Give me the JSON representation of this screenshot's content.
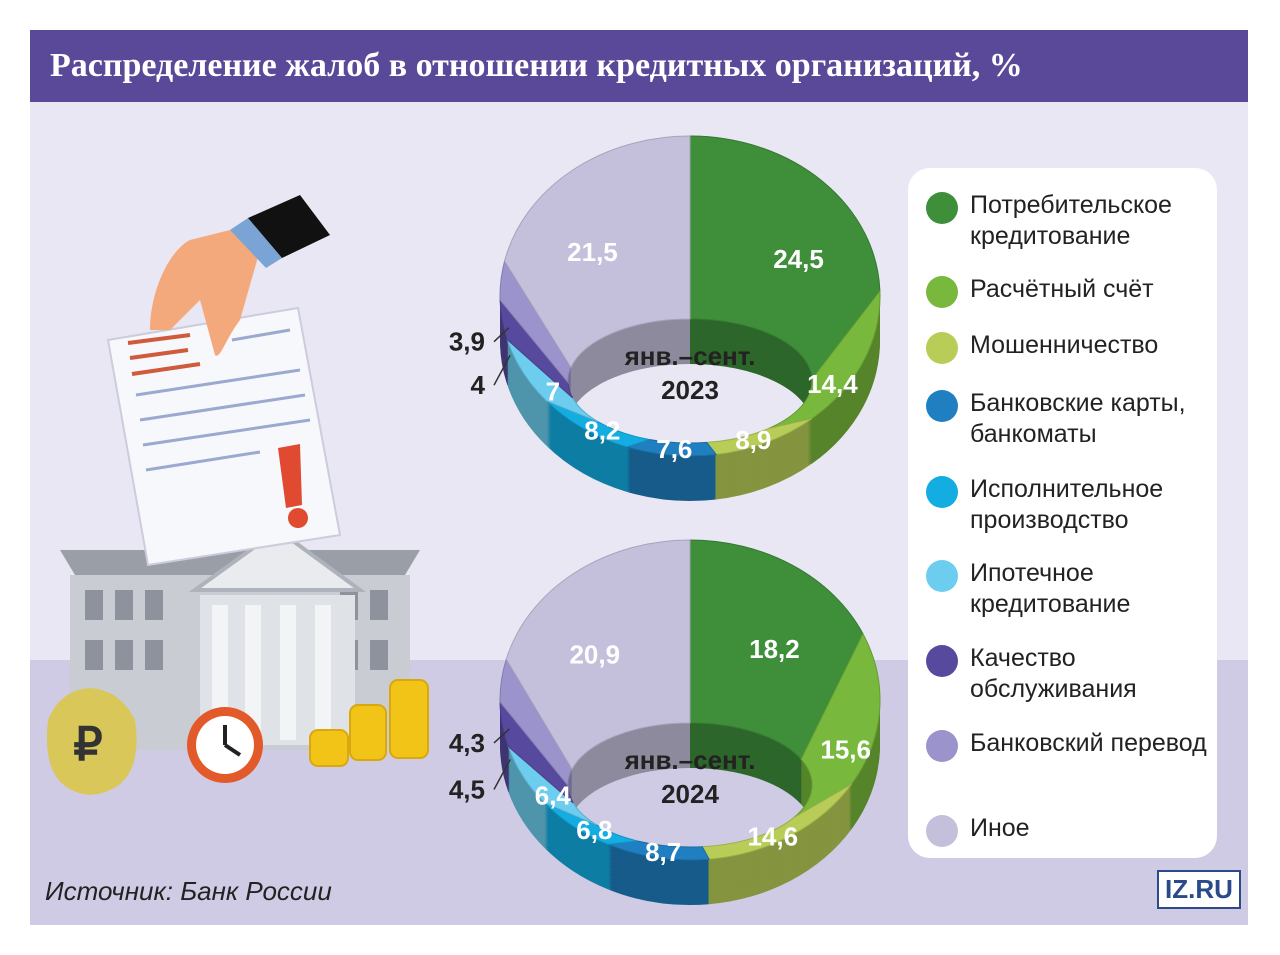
{
  "title": "Распределение жалоб в отношении кредитных организаций, %",
  "source": "Источник: Банк России",
  "logo": "IZ.RU",
  "chart_data": {
    "type": "pie",
    "donut": true,
    "categories": [
      "Потребительское кредитование",
      "Расчётный счёт",
      "Мошенничество",
      "Банковские карты, банкоматы",
      "Исполнительное производство",
      "Ипотечное кредитование",
      "Качество обслуживания",
      "Банковский перевод",
      "Иное"
    ],
    "colors": [
      "#3e8e3a",
      "#78b83c",
      "#b7cd58",
      "#1f7fc0",
      "#14ade2",
      "#6dcdee",
      "#574a9e",
      "#9b93cc",
      "#c4c0dc"
    ],
    "series": [
      {
        "name": "янв.–сент. 2023",
        "values": [
          24.5,
          14.4,
          8.9,
          7.6,
          8.2,
          7,
          4,
          3.9,
          21.5
        ],
        "value_labels": [
          "24,5",
          "14,4",
          "8,9",
          "7,6",
          "8,2",
          "7",
          "4",
          "3,9",
          "21,5"
        ]
      },
      {
        "name": "янв.–сент. 2024",
        "values": [
          18.2,
          15.6,
          14.6,
          8.7,
          6.8,
          6.4,
          4.5,
          4.3,
          20.9
        ],
        "value_labels": [
          "18,2",
          "15,6",
          "14,6",
          "8,7",
          "6,8",
          "6,4",
          "4,5",
          "4,3",
          "20,9"
        ]
      }
    ]
  }
}
